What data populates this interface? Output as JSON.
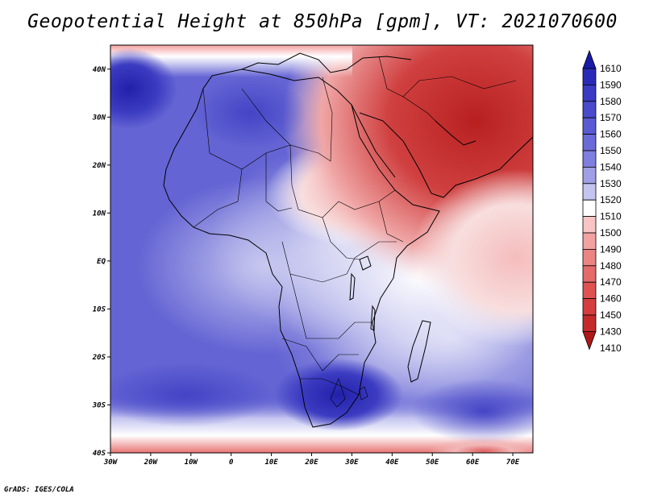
{
  "title": "Geopotential Height at 850hPa [gpm], VT: 2021070600",
  "credit": "GrADS: IGES/COLA",
  "map": {
    "lon_range": [
      -30,
      75
    ],
    "lat_range": [
      -40,
      45
    ],
    "x_ticks": [
      "30W",
      "20W",
      "10W",
      "0",
      "10E",
      "20E",
      "30E",
      "40E",
      "50E",
      "60E",
      "70E"
    ],
    "y_ticks": [
      "40N",
      "30N",
      "20N",
      "10N",
      "EQ",
      "10S",
      "20S",
      "30S",
      "40S"
    ]
  },
  "colorbar": {
    "levels": [
      "1610",
      "1590",
      "1580",
      "1570",
      "1560",
      "1550",
      "1540",
      "1530",
      "1520",
      "1510",
      "1500",
      "1490",
      "1480",
      "1470",
      "1460",
      "1450",
      "1430",
      "1410"
    ],
    "colors": [
      "#1a1aa8",
      "#2a2ab8",
      "#3a3ac4",
      "#4a4acc",
      "#5a5ad2",
      "#6a6ad8",
      "#7f7fdf",
      "#9f9fe6",
      "#c4c4f0",
      "#ffffff",
      "#f8c4c4",
      "#f3a2a2",
      "#ec8484",
      "#e56a6a",
      "#de5252",
      "#d43e3e",
      "#c42a2a",
      "#b01818"
    ]
  }
}
